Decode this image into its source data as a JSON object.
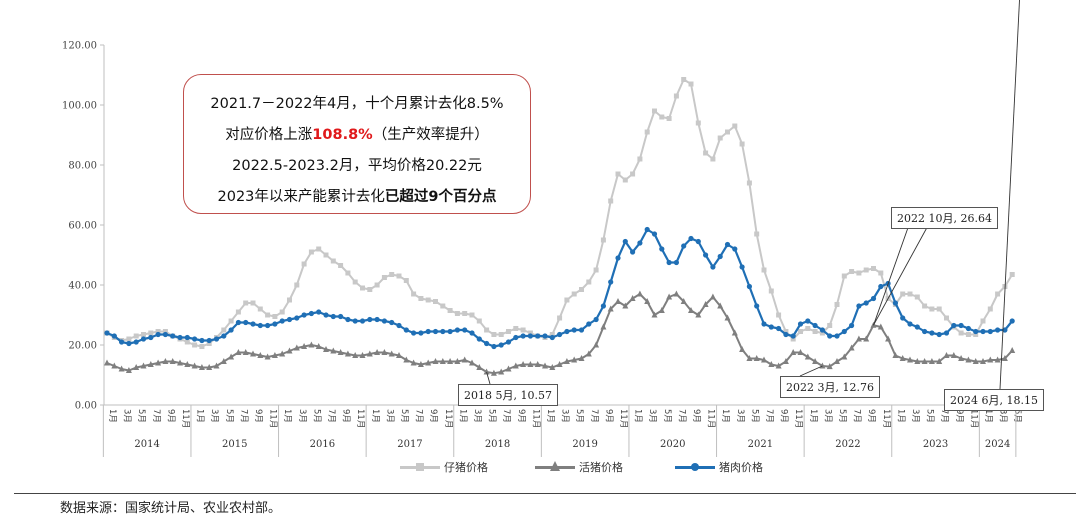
{
  "chart_data": {
    "type": "line",
    "yticks": [
      "0.00",
      "20.00",
      "40.00",
      "60.00",
      "80.00",
      "100.00",
      "120.00"
    ],
    "ylim": [
      0,
      120
    ],
    "month_labels": [
      "1月",
      "3月",
      "5月",
      "7月",
      "9月",
      "11月"
    ],
    "years": [
      "2014",
      "2015",
      "2016",
      "2017",
      "2018",
      "2019",
      "2020",
      "2021",
      "2022",
      "2023",
      "2024"
    ],
    "last_year_month_labels": [
      "1月",
      "3月",
      "5月"
    ],
    "series": [
      {
        "name": "仔猪价格",
        "color": "#c8c8c8",
        "marker": "square",
        "values": [
          24.0,
          22.5,
          21.5,
          22.0,
          23.0,
          23.5,
          24.0,
          24.5,
          24.5,
          23.0,
          22.0,
          21.0,
          20.0,
          19.5,
          20.5,
          22.5,
          25.0,
          28.0,
          31.0,
          34.0,
          34.0,
          32.0,
          30.0,
          29.5,
          31.0,
          35.0,
          40.0,
          47.0,
          51.0,
          52.0,
          50.0,
          48.0,
          46.5,
          44.0,
          41.0,
          39.0,
          38.5,
          40.0,
          42.5,
          43.5,
          43.0,
          41.5,
          37.0,
          35.5,
          35.0,
          34.5,
          33.0,
          31.5,
          30.5,
          30.5,
          30.0,
          28.0,
          25.0,
          23.5,
          23.5,
          24.5,
          25.5,
          25.0,
          24.0,
          23.0,
          22.5,
          23.5,
          29.0,
          35.0,
          37.0,
          38.5,
          41.0,
          45.0,
          55.0,
          68.0,
          77.0,
          75.0,
          77.0,
          82.0,
          91.0,
          98.0,
          96.0,
          95.5,
          103.0,
          108.5,
          107.0,
          94.0,
          84.0,
          82.0,
          89.0,
          91.0,
          93.0,
          87.0,
          74.0,
          57.0,
          45.0,
          38.0,
          30.0,
          24.5,
          22.0,
          24.5,
          25.5,
          24.5,
          24.0,
          26.5,
          33.5,
          43.0,
          44.5,
          44.0,
          45.0,
          45.5,
          44.0,
          35.5,
          33.5,
          37.0,
          37.0,
          36.0,
          33.0,
          32.0,
          32.0,
          29.0,
          26.0,
          24.0,
          23.5,
          23.5,
          28.0,
          32.0,
          37.0,
          39.5,
          43.5
        ]
      },
      {
        "name": "活猪价格",
        "color": "#7f7f7f",
        "marker": "triangle",
        "values": [
          14.0,
          13.0,
          12.0,
          11.5,
          12.5,
          13.0,
          13.5,
          14.0,
          14.5,
          14.5,
          14.0,
          13.5,
          13.0,
          12.5,
          12.5,
          13.0,
          14.5,
          16.0,
          17.5,
          17.5,
          17.0,
          16.5,
          16.0,
          16.5,
          17.0,
          18.0,
          19.0,
          19.5,
          20.0,
          19.5,
          18.5,
          18.0,
          17.5,
          17.0,
          16.5,
          16.5,
          17.0,
          17.5,
          17.5,
          17.0,
          16.5,
          15.0,
          14.0,
          13.5,
          14.0,
          14.5,
          14.5,
          14.5,
          14.5,
          15.0,
          14.0,
          12.5,
          11.0,
          10.6,
          11.0,
          12.0,
          13.0,
          13.5,
          13.5,
          13.5,
          13.0,
          12.5,
          13.5,
          14.5,
          15.0,
          15.5,
          17.0,
          20.0,
          26.0,
          32.0,
          34.5,
          33.0,
          35.5,
          37.0,
          34.5,
          30.0,
          31.5,
          36.0,
          37.0,
          34.5,
          31.5,
          30.0,
          33.5,
          36.0,
          33.0,
          29.0,
          24.0,
          18.5,
          15.5,
          15.5,
          15.0,
          13.5,
          13.0,
          14.5,
          17.5,
          17.5,
          16.0,
          14.5,
          13.0,
          12.8,
          14.5,
          16.0,
          19.0,
          22.0,
          22.0,
          26.6,
          26.0,
          22.0,
          16.5,
          15.5,
          15.0,
          14.5,
          14.5,
          14.5,
          14.5,
          16.5,
          16.5,
          15.5,
          15.0,
          14.5,
          14.5,
          15.0,
          15.0,
          15.5,
          18.15
        ]
      },
      {
        "name": "猪肉价格",
        "color": "#1f6fb5",
        "marker": "circle",
        "values": [
          24.0,
          23.0,
          21.0,
          20.5,
          21.0,
          22.0,
          22.5,
          23.5,
          23.5,
          23.0,
          22.5,
          22.5,
          22.0,
          21.5,
          21.5,
          22.0,
          23.0,
          25.0,
          27.5,
          27.5,
          27.0,
          26.5,
          26.5,
          27.0,
          28.0,
          28.5,
          29.0,
          30.0,
          30.5,
          31.0,
          30.0,
          29.5,
          29.5,
          28.5,
          28.0,
          28.0,
          28.5,
          28.5,
          28.0,
          27.5,
          26.5,
          25.0,
          24.0,
          24.0,
          24.5,
          24.5,
          24.5,
          24.5,
          25.0,
          25.0,
          24.0,
          22.0,
          20.5,
          19.5,
          20.0,
          21.0,
          22.5,
          23.0,
          23.0,
          23.0,
          23.0,
          22.5,
          23.5,
          24.5,
          25.0,
          25.0,
          27.0,
          28.5,
          33.0,
          41.0,
          49.0,
          54.5,
          51.0,
          54.0,
          58.5,
          57.0,
          52.0,
          47.5,
          47.5,
          53.0,
          55.5,
          54.5,
          50.0,
          46.0,
          49.5,
          53.5,
          52.0,
          46.0,
          39.5,
          33.0,
          27.0,
          26.0,
          25.5,
          23.5,
          23.0,
          27.0,
          28.0,
          26.5,
          25.0,
          23.0,
          23.0,
          24.5,
          26.5,
          33.0,
          34.0,
          35.5,
          39.5,
          40.5,
          34.0,
          29.0,
          27.0,
          26.0,
          24.5,
          24.0,
          23.5,
          24.0,
          26.5,
          26.5,
          25.5,
          24.5,
          24.5,
          24.5,
          25.0,
          25.0,
          28.0
        ]
      }
    ],
    "callouts": [
      {
        "text": "2018 5月, 10.57",
        "series": 1,
        "index": 52
      },
      {
        "text": "2022 10月, 26.64",
        "series": 1,
        "index": 105
      },
      {
        "text": "2022 3月, 12.76",
        "series": 1,
        "index": 98
      },
      {
        "text": "2024 6月, 18.15",
        "series": 1,
        "index": 125
      }
    ]
  },
  "annotation": {
    "line1": "2021.7－2022年4月，十个月累计去化8.5%",
    "line2_prefix": "对应价格上涨",
    "line2_highlight": "108.8%",
    "line2_suffix": "（生产效率提升）",
    "line3": "2022.5-2023.2月，平均价格20.22元",
    "line4_prefix": "2023年以来产能累计去化",
    "line4_bold": "已超过9个百分点"
  },
  "legend": {
    "piglet": "仔猪价格",
    "hog": "活猪价格",
    "pork": "猪肉价格"
  },
  "source": "数据来源：国家统计局、农业农村部。"
}
